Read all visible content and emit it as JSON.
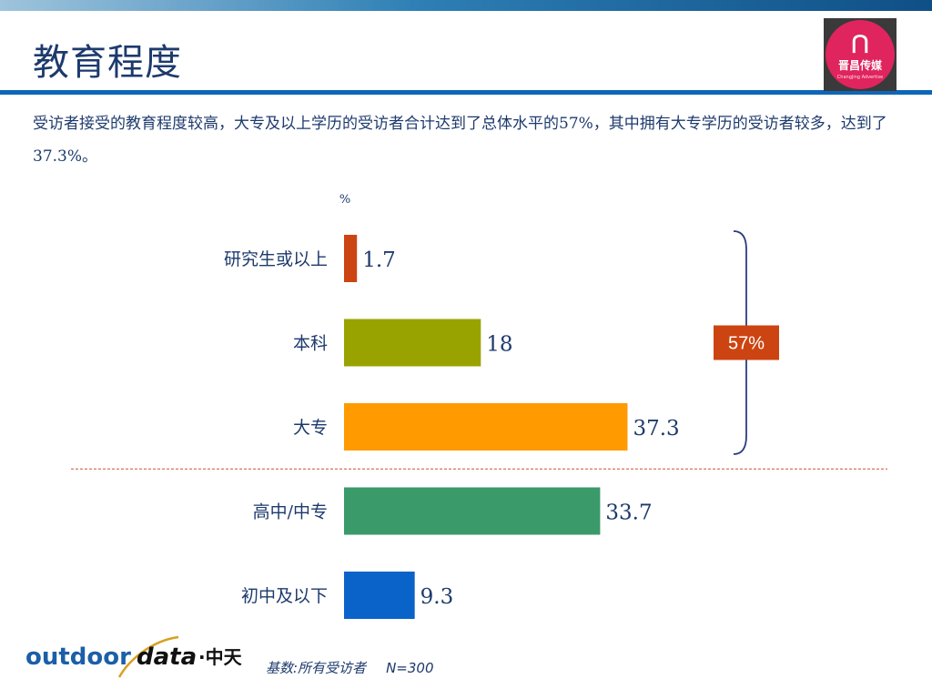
{
  "slide": {
    "title": "教育程度",
    "summary": "受访者接受的教育程度较高，大专及以上学历的受访者合计达到了总体水平的57%，其中拥有大专学历的受访者较多，达到了37.3%。"
  },
  "logo": {
    "name": "晋昌传媒",
    "subtitle": "Changjing Advertise"
  },
  "footer": {
    "base_label": "基数:所有受访者",
    "n_label": "N=300",
    "logo_word_1": "outdoor",
    "logo_word_2": "data",
    "logo_word_3": "·中天"
  },
  "colors": {
    "title": "#1d3a6d",
    "accent_blue": "#0d66b8",
    "badge": "#cc4411",
    "bracket": "#2b3c80",
    "divider": "#d05030"
  },
  "chart_data": {
    "type": "bar",
    "orientation": "horizontal",
    "unit_label": "%",
    "categories": [
      "研究生或以上",
      "本科",
      "大专",
      "高中/中专",
      "初中及以下"
    ],
    "values": [
      1.7,
      18,
      37.3,
      33.7,
      9.3
    ],
    "value_labels": [
      "1.7",
      "18",
      "37.3",
      "33.7",
      "9.3"
    ],
    "colors": [
      "#cc4411",
      "#99a300",
      "#ff9a00",
      "#3a9a6a",
      "#0a63c9"
    ],
    "xlim": [
      0,
      100
    ],
    "grid": false,
    "bracket_annotation": {
      "label": "57%",
      "covers_categories": [
        "研究生或以上",
        "本科",
        "大专"
      ]
    },
    "divider_after_category": "大专"
  }
}
